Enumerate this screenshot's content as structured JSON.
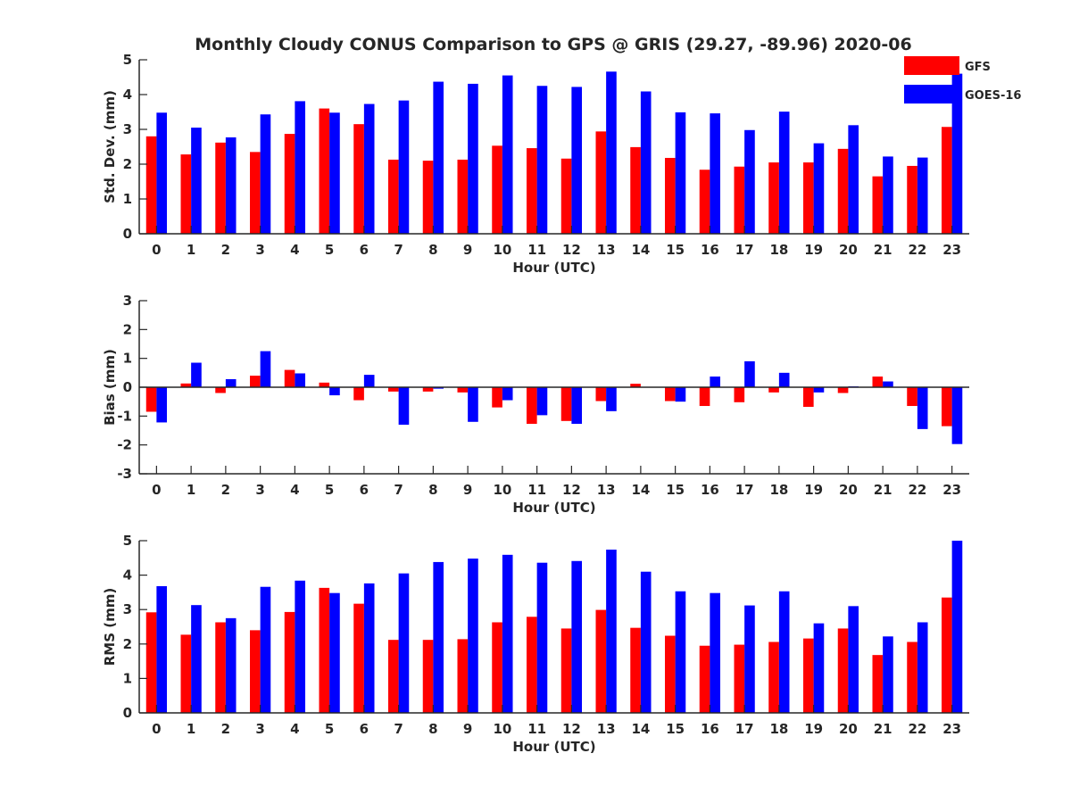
{
  "title": "Monthly Cloudy CONUS Comparison to GPS @ GRIS (29.27, -89.96) 2020-06",
  "colors": {
    "GFS": "#ff0000",
    "GOES-16": "#0000ff",
    "axis": "#262626"
  },
  "legend": {
    "placement": "top-right",
    "items": [
      "GFS",
      "GOES-16"
    ]
  },
  "chart_data": [
    {
      "type": "bar",
      "xlabel": "Hour (UTC)",
      "ylabel": "Std. Dev. (mm)",
      "ylim": [
        0,
        5
      ],
      "yticks": [
        0,
        1,
        2,
        3,
        4,
        5
      ],
      "categories": [
        "0",
        "1",
        "2",
        "3",
        "4",
        "5",
        "6",
        "7",
        "8",
        "9",
        "10",
        "11",
        "12",
        "13",
        "14",
        "15",
        "16",
        "17",
        "18",
        "19",
        "20",
        "21",
        "22",
        "23"
      ],
      "series": [
        {
          "name": "GFS",
          "values": [
            2.8,
            2.28,
            2.62,
            2.35,
            2.87,
            3.6,
            3.15,
            2.13,
            2.1,
            2.13,
            2.53,
            2.46,
            2.16,
            2.94,
            2.49,
            2.18,
            1.84,
            1.93,
            2.05,
            2.05,
            2.44,
            1.65,
            1.95,
            3.07
          ]
        },
        {
          "name": "GOES-16",
          "values": [
            3.48,
            3.05,
            2.77,
            3.43,
            3.81,
            3.48,
            3.73,
            3.83,
            4.37,
            4.31,
            4.55,
            4.25,
            4.22,
            4.66,
            4.09,
            3.49,
            3.46,
            2.98,
            3.51,
            2.6,
            3.12,
            2.22,
            2.19,
            4.6
          ]
        }
      ]
    },
    {
      "type": "bar",
      "xlabel": "Hour (UTC)",
      "ylabel": "Bias (mm)",
      "ylim": [
        -3,
        3
      ],
      "yticks": [
        -3,
        -2,
        -1,
        0,
        1,
        2,
        3
      ],
      "categories": [
        "0",
        "1",
        "2",
        "3",
        "4",
        "5",
        "6",
        "7",
        "8",
        "9",
        "10",
        "11",
        "12",
        "13",
        "14",
        "15",
        "16",
        "17",
        "18",
        "19",
        "20",
        "21",
        "22",
        "23"
      ],
      "series": [
        {
          "name": "GFS",
          "values": [
            -0.85,
            0.13,
            -0.2,
            0.4,
            0.6,
            0.16,
            -0.45,
            -0.15,
            -0.15,
            -0.18,
            -0.7,
            -1.27,
            -1.17,
            -0.48,
            0.12,
            -0.48,
            -0.65,
            -0.52,
            -0.18,
            -0.68,
            -0.2,
            0.37,
            -0.65,
            -1.35
          ]
        },
        {
          "name": "GOES-16",
          "values": [
            -1.22,
            0.85,
            0.28,
            1.25,
            0.48,
            -0.28,
            0.43,
            -1.3,
            -0.05,
            -1.2,
            -0.45,
            -0.97,
            -1.27,
            -0.83,
            0.0,
            -0.5,
            0.37,
            0.9,
            0.5,
            -0.18,
            0.03,
            0.2,
            -1.45,
            -1.97
          ]
        }
      ]
    },
    {
      "type": "bar",
      "xlabel": "Hour (UTC)",
      "ylabel": "RMS (mm)",
      "ylim": [
        0,
        5
      ],
      "yticks": [
        0,
        1,
        2,
        3,
        4,
        5
      ],
      "categories": [
        "0",
        "1",
        "2",
        "3",
        "4",
        "5",
        "6",
        "7",
        "8",
        "9",
        "10",
        "11",
        "12",
        "13",
        "14",
        "15",
        "16",
        "17",
        "18",
        "19",
        "20",
        "21",
        "22",
        "23"
      ],
      "series": [
        {
          "name": "GFS",
          "values": [
            2.92,
            2.27,
            2.63,
            2.4,
            2.93,
            3.63,
            3.17,
            2.12,
            2.12,
            2.14,
            2.63,
            2.79,
            2.45,
            2.99,
            2.47,
            2.24,
            1.95,
            1.98,
            2.06,
            2.16,
            2.45,
            1.68,
            2.06,
            3.35
          ]
        },
        {
          "name": "GOES-16",
          "values": [
            3.68,
            3.13,
            2.75,
            3.66,
            3.84,
            3.48,
            3.76,
            4.05,
            4.38,
            4.48,
            4.59,
            4.36,
            4.41,
            4.74,
            4.1,
            3.53,
            3.48,
            3.12,
            3.53,
            2.6,
            3.1,
            2.22,
            2.63,
            5.0
          ]
        }
      ]
    }
  ]
}
